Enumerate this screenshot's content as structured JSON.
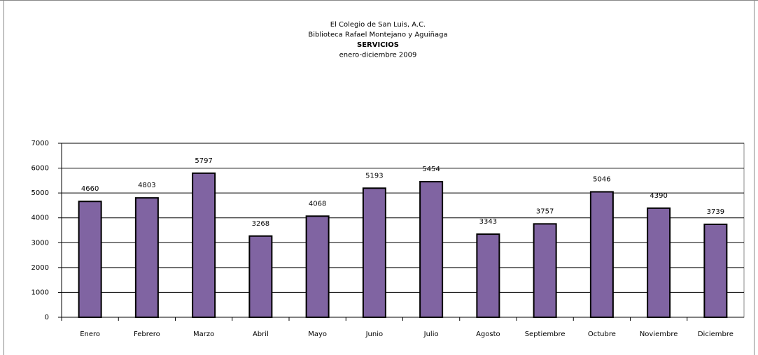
{
  "chart_data": {
    "type": "bar",
    "title_lines": [
      "El Colegio de San Luis, A.C.",
      "Biblioteca Rafael Montejano y Aguiñaga",
      "SERVICIOS",
      "enero-diciembre 2009"
    ],
    "categories": [
      "Enero",
      "Febrero",
      "Marzo",
      "Abril",
      "Mayo",
      "Junio",
      "Julio",
      "Agosto",
      "Septiembre",
      "Octubre",
      "Noviembre",
      "Diciembre"
    ],
    "values": [
      4660,
      4803,
      5797,
      3268,
      4068,
      5193,
      5454,
      3343,
      3757,
      5046,
      4390,
      3739
    ],
    "color": "#8064a2",
    "ylim": [
      0,
      7000
    ],
    "yticks": [
      0,
      1000,
      2000,
      3000,
      4000,
      5000,
      6000,
      7000
    ],
    "grid": true
  }
}
